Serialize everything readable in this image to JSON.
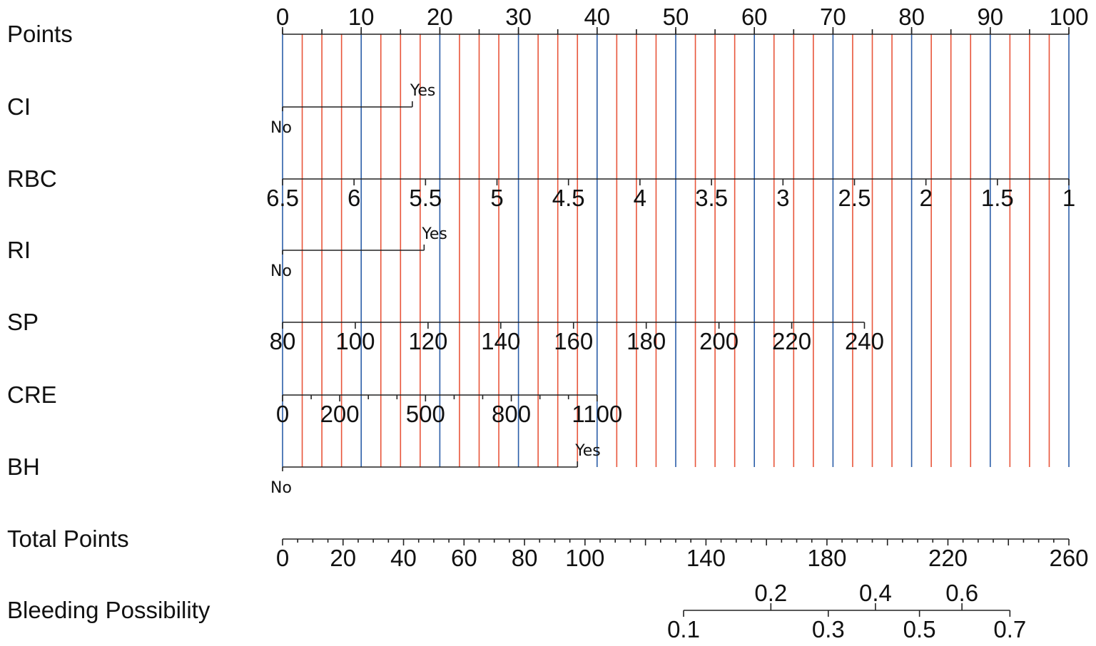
{
  "chart_data": {
    "type": "nomogram",
    "gridlines": {
      "from": 0,
      "to": 100,
      "step": 2.5,
      "major_every": 10,
      "major_color": "#2b5ea8",
      "minor_color": "#e8553a"
    },
    "rows": [
      {
        "id": "points",
        "label": "Points",
        "kind": "scale",
        "from": 0,
        "to": 100,
        "ticks": [
          {
            "v": 0,
            "t": "0"
          },
          {
            "v": 10,
            "t": "10"
          },
          {
            "v": 20,
            "t": "20"
          },
          {
            "v": 30,
            "t": "30"
          },
          {
            "v": 40,
            "t": "40"
          },
          {
            "v": 50,
            "t": "50"
          },
          {
            "v": 60,
            "t": "60"
          },
          {
            "v": 70,
            "t": "70"
          },
          {
            "v": 80,
            "t": "80"
          },
          {
            "v": 90,
            "t": "90"
          },
          {
            "v": 100,
            "t": "100"
          }
        ],
        "minor_step": 5,
        "labels": "above"
      },
      {
        "id": "ci",
        "label": "CI",
        "kind": "binary",
        "no": "No",
        "yes": "Yes",
        "no_points": 0,
        "yes_points": 16.5
      },
      {
        "id": "rbc",
        "label": "RBC",
        "kind": "scale",
        "from": 0,
        "to": 100,
        "ticks": [
          {
            "v": 0,
            "t": "6.5"
          },
          {
            "v": 9.09,
            "t": "6"
          },
          {
            "v": 18.18,
            "t": "5.5"
          },
          {
            "v": 27.27,
            "t": "5"
          },
          {
            "v": 36.36,
            "t": "4.5"
          },
          {
            "v": 45.45,
            "t": "4"
          },
          {
            "v": 54.55,
            "t": "3.5"
          },
          {
            "v": 63.64,
            "t": "3"
          },
          {
            "v": 72.73,
            "t": "2.5"
          },
          {
            "v": 81.82,
            "t": "2"
          },
          {
            "v": 90.91,
            "t": "1.5"
          },
          {
            "v": 100,
            "t": "1"
          }
        ],
        "labels": "below"
      },
      {
        "id": "ri",
        "label": "RI",
        "kind": "binary",
        "no": "No",
        "yes": "Yes",
        "no_points": 0,
        "yes_points": 18
      },
      {
        "id": "sp",
        "label": "SP",
        "kind": "scale",
        "from": 0,
        "to": 74,
        "ticks": [
          {
            "v": 0,
            "t": "80"
          },
          {
            "v": 9.25,
            "t": "100"
          },
          {
            "v": 18.5,
            "t": "120"
          },
          {
            "v": 27.75,
            "t": "140"
          },
          {
            "v": 37,
            "t": "160"
          },
          {
            "v": 46.25,
            "t": "180"
          },
          {
            "v": 55.5,
            "t": "200"
          },
          {
            "v": 64.75,
            "t": "220"
          },
          {
            "v": 74,
            "t": "240"
          }
        ],
        "labels": "below"
      },
      {
        "id": "cre",
        "label": "CRE",
        "kind": "scale",
        "from": 0,
        "to": 40,
        "ticks": [
          {
            "v": 0,
            "t": "0"
          },
          {
            "v": 7.27,
            "t": "200"
          },
          {
            "v": 18.18,
            "t": "500"
          },
          {
            "v": 29.09,
            "t": "800"
          },
          {
            "v": 40,
            "t": "1100"
          }
        ],
        "minor_ticks": [
          3.64,
          10.91,
          14.55,
          21.82,
          25.45,
          32.73,
          36.36
        ],
        "labels": "below"
      },
      {
        "id": "bh",
        "label": "BH",
        "kind": "binary",
        "no": "No",
        "yes": "Yes",
        "no_points": 0,
        "yes_points": 37.5
      },
      {
        "id": "total",
        "label": "Total Points",
        "kind": "scale",
        "from": 0,
        "to": 100,
        "ticks": [
          {
            "v": 0,
            "t": "0"
          },
          {
            "v": 7.69,
            "t": "20"
          },
          {
            "v": 15.38,
            "t": "40"
          },
          {
            "v": 23.08,
            "t": "60"
          },
          {
            "v": 30.77,
            "t": "80"
          },
          {
            "v": 38.46,
            "t": "100"
          },
          {
            "v": 53.85,
            "t": "140"
          },
          {
            "v": 69.23,
            "t": "180"
          },
          {
            "v": 84.62,
            "t": "220"
          },
          {
            "v": 100,
            "t": "260"
          }
        ],
        "minor_every_units": 5,
        "major_every_units": 20,
        "units_max": 260,
        "labels": "below"
      },
      {
        "id": "bleeding",
        "label": "Bleeding Possibility",
        "kind": "scale",
        "from": 51,
        "to": 92.5,
        "ticks": [
          {
            "v": 51,
            "t": "0.1",
            "pos": "below"
          },
          {
            "v": 62.1,
            "t": "0.2",
            "pos": "above"
          },
          {
            "v": 69.4,
            "t": "0.3",
            "pos": "below"
          },
          {
            "v": 75.4,
            "t": "0.4",
            "pos": "above"
          },
          {
            "v": 81,
            "t": "0.5",
            "pos": "below"
          },
          {
            "v": 86.4,
            "t": "0.6",
            "pos": "above"
          },
          {
            "v": 92.5,
            "t": "0.7",
            "pos": "below"
          }
        ],
        "labels": "mixed"
      }
    ]
  }
}
